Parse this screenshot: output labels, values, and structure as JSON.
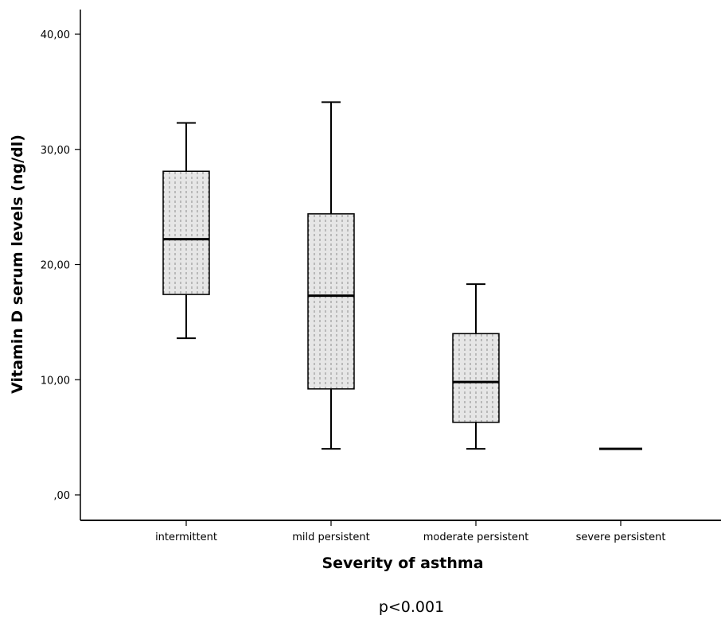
{
  "chart_data": {
    "type": "box",
    "xlabel": "Severity of asthma",
    "ylabel": "Vitamin D serum levels (ng/dl)",
    "ylim": [
      0,
      42
    ],
    "yticks": [
      0,
      10,
      20,
      30,
      40
    ],
    "ytick_labels": [
      ",00",
      "10,00",
      "20,00",
      "30,00",
      "40,00"
    ],
    "categories": [
      "intermittent",
      "mild persistent",
      "moderate persistent",
      "severe persistent"
    ],
    "boxes": [
      {
        "category": "intermittent",
        "whisker_low": 13.6,
        "q1": 17.4,
        "median": 22.2,
        "q3": 28.1,
        "whisker_high": 32.3
      },
      {
        "category": "mild persistent",
        "whisker_low": 4.0,
        "q1": 9.2,
        "median": 17.3,
        "q3": 24.4,
        "whisker_high": 34.1
      },
      {
        "category": "moderate persistent",
        "whisker_low": 4.0,
        "q1": 6.3,
        "median": 9.8,
        "q3": 14.0,
        "whisker_high": 18.3
      },
      {
        "category": "severe persistent",
        "whisker_low": 4.0,
        "q1": 4.0,
        "median": 4.0,
        "q3": 4.0,
        "whisker_high": 4.0
      }
    ],
    "annotation": "p<0.001",
    "colors": {
      "box_fill": "#e6e6e6",
      "stroke": "#000000",
      "stipple": "#8c8c8c"
    }
  }
}
